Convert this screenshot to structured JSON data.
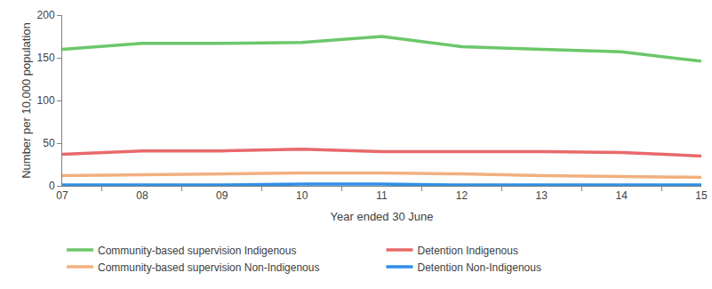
{
  "chart_data": {
    "type": "line",
    "x_label": "Year ended 30 June",
    "y_label": "Number per 10,000 population",
    "categories": [
      "07",
      "08",
      "09",
      "10",
      "11",
      "12",
      "13",
      "14",
      "15"
    ],
    "series": [
      {
        "name": "Community-based supervision Indigenous",
        "color": "#6cc76a",
        "values": [
          160,
          167,
          167,
          168,
          175,
          163,
          160,
          157,
          146
        ]
      },
      {
        "name": "Detention Indigenous",
        "color": "#e8696b",
        "values": [
          37,
          41,
          41,
          43,
          40,
          40,
          40,
          39,
          35
        ]
      },
      {
        "name": "Community-based supervision Non-Indigenous",
        "color": "#f0b07f",
        "values": [
          12,
          13,
          14,
          15,
          15,
          14,
          12,
          11,
          10
        ]
      },
      {
        "name": "Detention Non-Indigenous",
        "color": "#2f8fe6",
        "values": [
          1,
          1,
          1,
          2,
          2,
          1,
          1,
          1,
          1
        ]
      }
    ],
    "ylim": [
      0,
      200
    ],
    "yticks": [
      0,
      50,
      100,
      150,
      200
    ],
    "grid": false,
    "legend": "bottom"
  }
}
